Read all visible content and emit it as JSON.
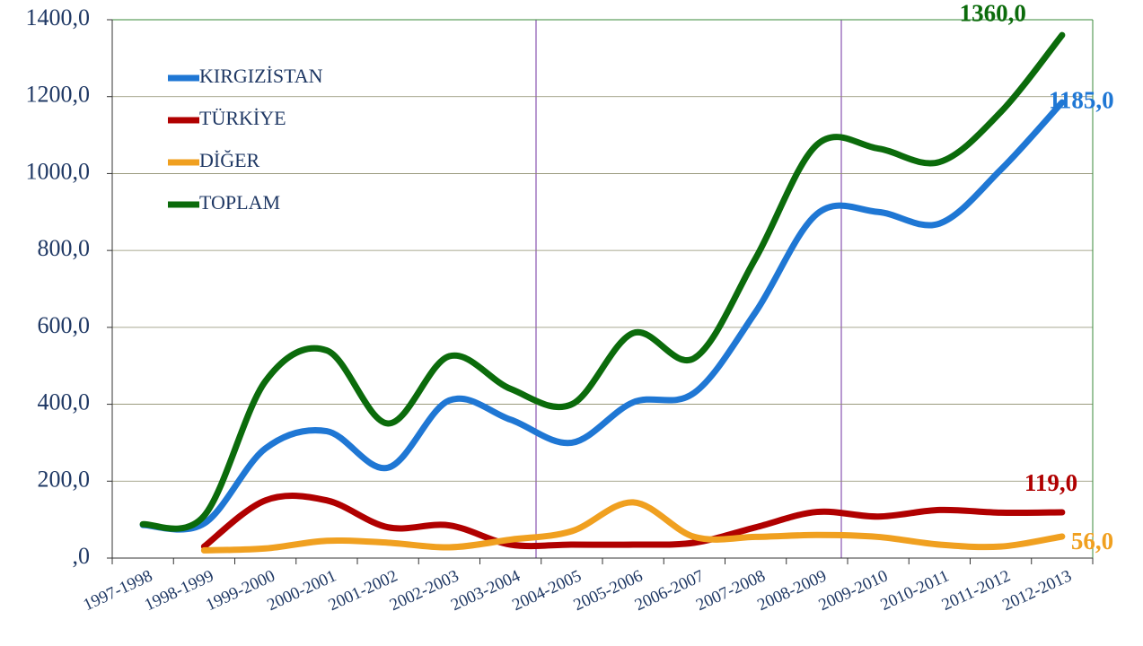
{
  "chart_data": {
    "type": "line",
    "categories": [
      "1997-1998",
      "1998-1999",
      "1999-2000",
      "2000-2001",
      "2001-2002",
      "2002-2003",
      "2003-2004",
      "2004-2005",
      "2005-2006",
      "2006-2007",
      "2007-2008",
      "2008-2009",
      "2009-2010",
      "2010-2011",
      "2011-2012",
      "2012-2013"
    ],
    "series": [
      {
        "name": "KIRGIZİSTAN",
        "color": "#1f77d4",
        "values": [
          86,
          90,
          285,
          330,
          235,
          410,
          360,
          300,
          405,
          430,
          640,
          895,
          900,
          870,
          1010,
          1185
        ],
        "value_labels": {
          "15": "1185,0"
        }
      },
      {
        "name": "TÜRKİYE",
        "color": "#b00000",
        "values": [
          null,
          30,
          150,
          150,
          80,
          85,
          35,
          35,
          35,
          40,
          80,
          120,
          108,
          125,
          118,
          119
        ],
        "value_labels": {
          "15": "119,0"
        }
      },
      {
        "name": "DİĞER",
        "color": "#f0a020",
        "values": [
          null,
          20,
          25,
          45,
          40,
          28,
          48,
          70,
          145,
          55,
          55,
          60,
          55,
          35,
          30,
          56
        ],
        "value_labels": {
          "15": "56,0"
        }
      },
      {
        "name": "TOPLAM",
        "color": "#0b6b0b",
        "values": [
          88,
          110,
          460,
          540,
          350,
          525,
          440,
          400,
          585,
          520,
          780,
          1075,
          1065,
          1030,
          1160,
          1360
        ],
        "value_labels": {
          "15": "1360,0"
        }
      }
    ],
    "ylim": [
      0,
      1400
    ],
    "yticks": [
      {
        "value": 0,
        "label": ",0"
      },
      {
        "value": 200,
        "label": "200,0"
      },
      {
        "value": 400,
        "label": "400,0"
      },
      {
        "value": 600,
        "label": "600,0"
      },
      {
        "value": 800,
        "label": "800,0"
      },
      {
        "value": 1000,
        "label": "1000,0"
      },
      {
        "value": 1200,
        "label": "1200,0"
      },
      {
        "value": 1400,
        "label": "1400,0"
      }
    ],
    "grid": true,
    "legend": "upper left"
  }
}
